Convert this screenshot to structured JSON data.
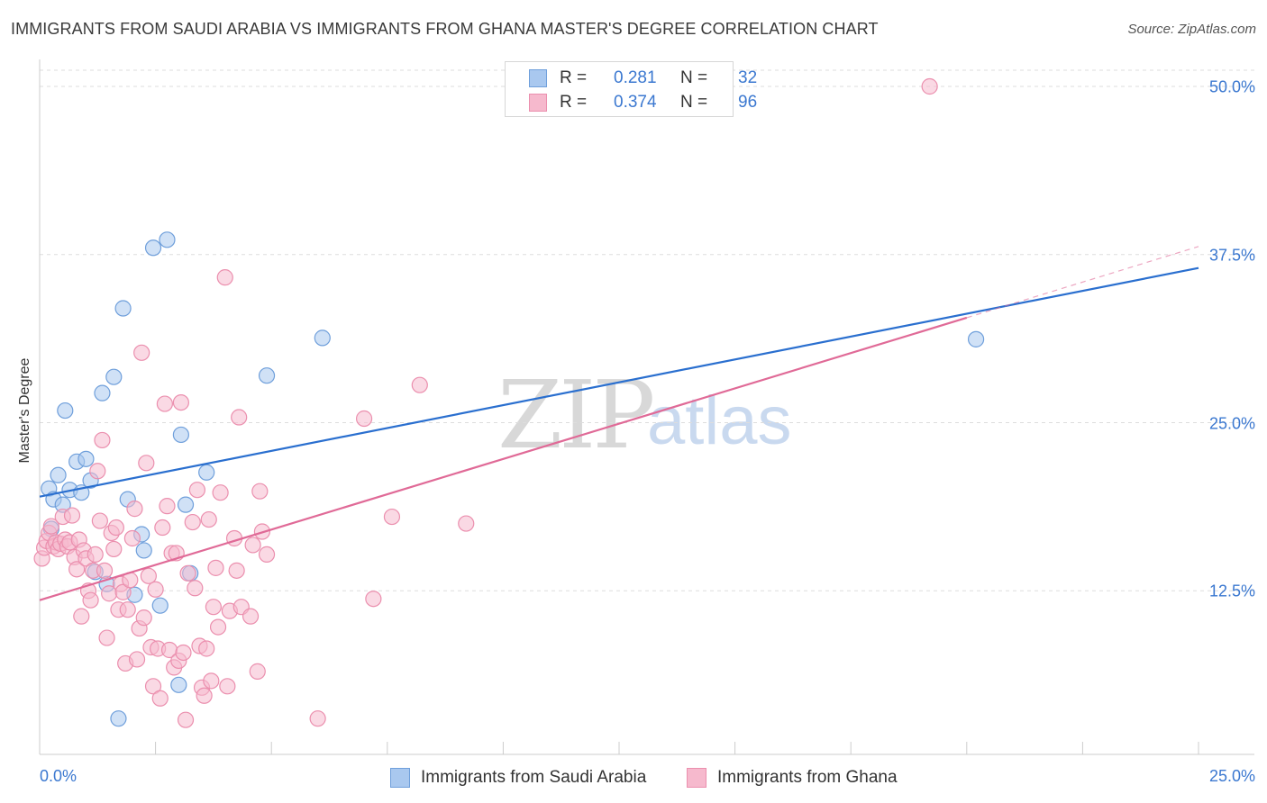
{
  "title": "IMMIGRANTS FROM SAUDI ARABIA VS IMMIGRANTS FROM GHANA MASTER'S DEGREE CORRELATION CHART",
  "source": "Source: ZipAtlas.com",
  "watermark": {
    "zip": "ZIP",
    "atlas": "atlas"
  },
  "colors": {
    "blue_fill": "#a9c8ef",
    "blue_stroke": "#6f9fdb",
    "blue_line": "#2a6fcf",
    "pink_fill": "#f6b9cd",
    "pink_stroke": "#eb8fae",
    "pink_line": "#e06a97",
    "tick_text": "#3b78d0",
    "grid": "#dddddd"
  },
  "legend": {
    "r_label": "R =",
    "n_label": "N =",
    "saudi": {
      "r": "0.281",
      "n": "32"
    },
    "ghana": {
      "r": "0.374",
      "n": "96"
    }
  },
  "bottom_legend": {
    "saudi_label": "Immigrants from Saudi Arabia",
    "ghana_label": "Immigrants from Ghana"
  },
  "chart_data": {
    "type": "scatter",
    "title": "IMMIGRANTS FROM SAUDI ARABIA VS IMMIGRANTS FROM GHANA MASTER'S DEGREE CORRELATION CHART",
    "xlabel": "",
    "ylabel": "Master's Degree",
    "xlim": [
      0,
      25
    ],
    "ylim": [
      0,
      52
    ],
    "x_tick_labels": [
      "0.0%",
      "25.0%"
    ],
    "y_ticks": [
      12.5,
      25.0,
      37.5,
      50.0
    ],
    "y_tick_labels": [
      "12.5%",
      "25.0%",
      "37.5%",
      "50.0%"
    ],
    "grid": true,
    "series": [
      {
        "name": "Immigrants from Saudi Arabia",
        "color": "blue",
        "trend": {
          "x": [
            0,
            25
          ],
          "y": [
            19.5,
            36.5
          ]
        },
        "points": [
          [
            0.2,
            20.1
          ],
          [
            0.25,
            17.1
          ],
          [
            0.3,
            19.3
          ],
          [
            0.4,
            21.1
          ],
          [
            0.5,
            18.9
          ],
          [
            0.55,
            25.9
          ],
          [
            0.65,
            20.0
          ],
          [
            0.8,
            22.1
          ],
          [
            0.9,
            19.8
          ],
          [
            1.0,
            22.3
          ],
          [
            1.1,
            20.7
          ],
          [
            1.2,
            13.9
          ],
          [
            1.35,
            27.2
          ],
          [
            1.45,
            13.0
          ],
          [
            1.6,
            28.4
          ],
          [
            1.7,
            3.0
          ],
          [
            1.8,
            33.5
          ],
          [
            1.9,
            19.3
          ],
          [
            2.05,
            12.2
          ],
          [
            2.2,
            16.7
          ],
          [
            2.25,
            15.5
          ],
          [
            2.45,
            38.0
          ],
          [
            2.6,
            11.4
          ],
          [
            2.75,
            38.6
          ],
          [
            3.0,
            5.5
          ],
          [
            3.05,
            24.1
          ],
          [
            3.15,
            18.9
          ],
          [
            3.25,
            13.8
          ],
          [
            3.6,
            21.3
          ],
          [
            6.1,
            31.3
          ],
          [
            4.9,
            28.5
          ],
          [
            20.2,
            31.2
          ]
        ]
      },
      {
        "name": "Immigrants from Ghana",
        "color": "pink",
        "trend": {
          "x": [
            0,
            20.0
          ],
          "y": [
            11.8,
            32.8
          ]
        },
        "trend_dashed": {
          "x": [
            20.0,
            25
          ],
          "y": [
            32.8,
            38.1
          ]
        },
        "points": [
          [
            0.05,
            14.9
          ],
          [
            0.1,
            15.7
          ],
          [
            0.15,
            16.2
          ],
          [
            0.2,
            16.8
          ],
          [
            0.25,
            17.3
          ],
          [
            0.3,
            15.8
          ],
          [
            0.35,
            16.1
          ],
          [
            0.4,
            15.6
          ],
          [
            0.45,
            16.0
          ],
          [
            0.5,
            18.0
          ],
          [
            0.55,
            16.3
          ],
          [
            0.6,
            15.8
          ],
          [
            0.65,
            16.1
          ],
          [
            0.7,
            18.1
          ],
          [
            0.75,
            15.0
          ],
          [
            0.8,
            14.1
          ],
          [
            0.85,
            16.3
          ],
          [
            0.9,
            10.6
          ],
          [
            0.95,
            15.5
          ],
          [
            1.0,
            14.9
          ],
          [
            1.05,
            12.5
          ],
          [
            1.1,
            11.8
          ],
          [
            1.15,
            14.0
          ],
          [
            1.2,
            15.2
          ],
          [
            1.25,
            21.4
          ],
          [
            1.3,
            17.7
          ],
          [
            1.35,
            23.7
          ],
          [
            1.4,
            14.0
          ],
          [
            1.45,
            9.0
          ],
          [
            1.5,
            12.3
          ],
          [
            1.55,
            16.8
          ],
          [
            1.6,
            15.6
          ],
          [
            1.65,
            17.2
          ],
          [
            1.7,
            11.1
          ],
          [
            1.75,
            13.0
          ],
          [
            1.8,
            12.4
          ],
          [
            1.85,
            7.1
          ],
          [
            1.9,
            11.1
          ],
          [
            1.95,
            13.3
          ],
          [
            2.0,
            16.4
          ],
          [
            2.05,
            18.6
          ],
          [
            2.1,
            7.4
          ],
          [
            2.15,
            9.7
          ],
          [
            2.2,
            30.2
          ],
          [
            2.25,
            10.5
          ],
          [
            2.3,
            22.0
          ],
          [
            2.35,
            13.6
          ],
          [
            2.4,
            8.3
          ],
          [
            2.45,
            5.4
          ],
          [
            2.5,
            12.6
          ],
          [
            2.55,
            8.2
          ],
          [
            2.6,
            4.5
          ],
          [
            2.65,
            17.2
          ],
          [
            2.7,
            26.4
          ],
          [
            2.75,
            18.8
          ],
          [
            2.8,
            8.1
          ],
          [
            2.85,
            15.3
          ],
          [
            2.9,
            6.8
          ],
          [
            2.95,
            15.3
          ],
          [
            3.0,
            7.3
          ],
          [
            3.05,
            26.5
          ],
          [
            3.1,
            7.9
          ],
          [
            3.15,
            2.9
          ],
          [
            3.2,
            13.8
          ],
          [
            3.3,
            17.6
          ],
          [
            3.35,
            12.7
          ],
          [
            3.4,
            20.0
          ],
          [
            3.45,
            8.4
          ],
          [
            3.5,
            5.3
          ],
          [
            3.55,
            4.7
          ],
          [
            3.6,
            8.2
          ],
          [
            3.65,
            17.8
          ],
          [
            3.7,
            5.8
          ],
          [
            3.75,
            11.3
          ],
          [
            3.8,
            14.2
          ],
          [
            3.85,
            9.8
          ],
          [
            3.9,
            19.8
          ],
          [
            4.0,
            35.8
          ],
          [
            4.05,
            5.4
          ],
          [
            4.1,
            11.0
          ],
          [
            4.2,
            16.4
          ],
          [
            4.25,
            14.0
          ],
          [
            4.3,
            25.4
          ],
          [
            4.35,
            11.3
          ],
          [
            4.55,
            10.6
          ],
          [
            4.6,
            15.9
          ],
          [
            4.7,
            6.5
          ],
          [
            4.75,
            19.9
          ],
          [
            4.8,
            16.9
          ],
          [
            4.9,
            15.2
          ],
          [
            6.0,
            3.0
          ],
          [
            7.0,
            25.3
          ],
          [
            7.2,
            11.9
          ],
          [
            7.6,
            18.0
          ],
          [
            8.2,
            27.8
          ],
          [
            9.2,
            17.5
          ],
          [
            19.2,
            50.0
          ]
        ]
      }
    ]
  }
}
